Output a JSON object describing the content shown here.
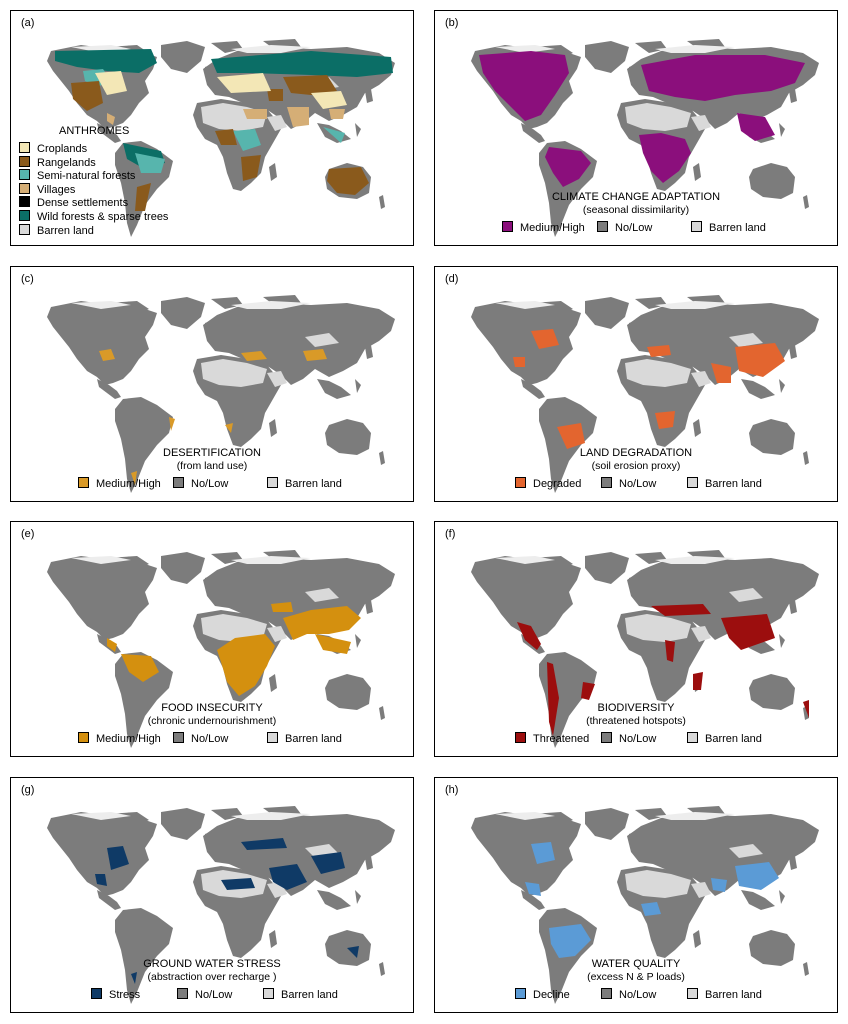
{
  "colors": {
    "gray": "#7c7c7c",
    "barren": "#d9d9d9",
    "arctic": "#ededed"
  },
  "panels": {
    "a": {
      "label": "(a)",
      "legend_title": "ANTHROMES",
      "legend": [
        {
          "label": "Croplands",
          "color": "#f3e7b6"
        },
        {
          "label": "Rangelands",
          "color": "#8a5a1c"
        },
        {
          "label": "Semi-natural forests",
          "color": "#57b5ad"
        },
        {
          "label": "Villages",
          "color": "#d5ae76"
        },
        {
          "label": "Dense settlements",
          "color": "#000000"
        },
        {
          "label": "Wild forests & sparse trees",
          "color": "#0b6e66"
        },
        {
          "label": "Barren land",
          "color": "#d9d9d9"
        }
      ]
    },
    "b": {
      "label": "(b)",
      "title": "CLIMATE CHANGE ADAPTATION",
      "subtitle": "(seasonal dissimilarity)",
      "highlight_color": "#8b0f7c",
      "legend": [
        {
          "label": "Medium/High",
          "color": "#8b0f7c"
        },
        {
          "label": "No/Low",
          "color": "#7c7c7c"
        },
        {
          "label": "Barren land",
          "color": "#d9d9d9"
        }
      ]
    },
    "c": {
      "label": "(c)",
      "title": "DESERTIFICATION",
      "subtitle": "(from land use)",
      "highlight_color": "#d99a28",
      "legend": [
        {
          "label": "Medium/High",
          "color": "#d99a28"
        },
        {
          "label": "No/Low",
          "color": "#7c7c7c"
        },
        {
          "label": "Barren land",
          "color": "#d9d9d9"
        }
      ]
    },
    "d": {
      "label": "(d)",
      "title": "LAND DEGRADATION",
      "subtitle": "(soil erosion proxy)",
      "highlight_color": "#e3652f",
      "legend": [
        {
          "label": "Degraded",
          "color": "#e3652f"
        },
        {
          "label": "No/Low",
          "color": "#7c7c7c"
        },
        {
          "label": "Barren land",
          "color": "#d9d9d9"
        }
      ]
    },
    "e": {
      "label": "(e)",
      "title": "FOOD INSECURITY",
      "subtitle": "(chronic undernourishment)",
      "highlight_color": "#d4900f",
      "legend": [
        {
          "label": "Medium/High",
          "color": "#d4900f"
        },
        {
          "label": "No/Low",
          "color": "#7c7c7c"
        },
        {
          "label": "Barren land",
          "color": "#d9d9d9"
        }
      ]
    },
    "f": {
      "label": "(f)",
      "title": "BIODIVERSITY",
      "subtitle": "(threatened hotspots)",
      "highlight_color": "#9c0e0e",
      "legend": [
        {
          "label": "Threatened",
          "color": "#9c0e0e"
        },
        {
          "label": "No/Low",
          "color": "#7c7c7c"
        },
        {
          "label": "Barren land",
          "color": "#d9d9d9"
        }
      ]
    },
    "g": {
      "label": "(g)",
      "title": "GROUND WATER STRESS",
      "subtitle": "(abstraction over recharge )",
      "highlight_color": "#0f3a66",
      "legend": [
        {
          "label": "Stress",
          "color": "#0f3a66"
        },
        {
          "label": "No/Low",
          "color": "#7c7c7c"
        },
        {
          "label": "Barren land",
          "color": "#d9d9d9"
        }
      ]
    },
    "h": {
      "label": "(h)",
      "title": "WATER QUALITY",
      "subtitle": "(excess N & P loads)",
      "highlight_color": "#5b9bd6",
      "legend": [
        {
          "label": "Decline",
          "color": "#5b9bd6"
        },
        {
          "label": "No/Low",
          "color": "#7c7c7c"
        },
        {
          "label": "Barren land",
          "color": "#d9d9d9"
        }
      ]
    }
  }
}
